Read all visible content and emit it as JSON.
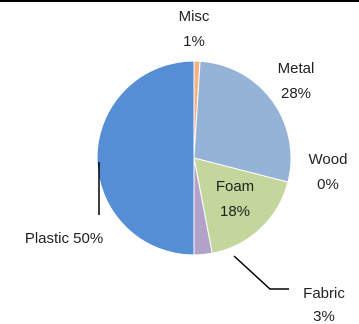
{
  "chart_data": {
    "type": "pie",
    "title": "",
    "slices": [
      {
        "name": "Misc",
        "value": 1,
        "label": "1%",
        "color": "#f4b183"
      },
      {
        "name": "Metal",
        "value": 28,
        "label": "28%",
        "color": "#95b3d7"
      },
      {
        "name": "Wood",
        "value": 0,
        "label": "0%",
        "color": "#4f81bd"
      },
      {
        "name": "Foam",
        "value": 18,
        "label": "18%",
        "color": "#c3d69b"
      },
      {
        "name": "Fabric",
        "value": 3,
        "label": "3%",
        "color": "#b3a2c7"
      },
      {
        "name": "Plastic",
        "value": 50,
        "label": "50%",
        "color": "#558ed5"
      }
    ],
    "start_direction": "12 o'clock",
    "direction": "clockwise",
    "legend": "none",
    "data_labels": "category name and percentage"
  }
}
